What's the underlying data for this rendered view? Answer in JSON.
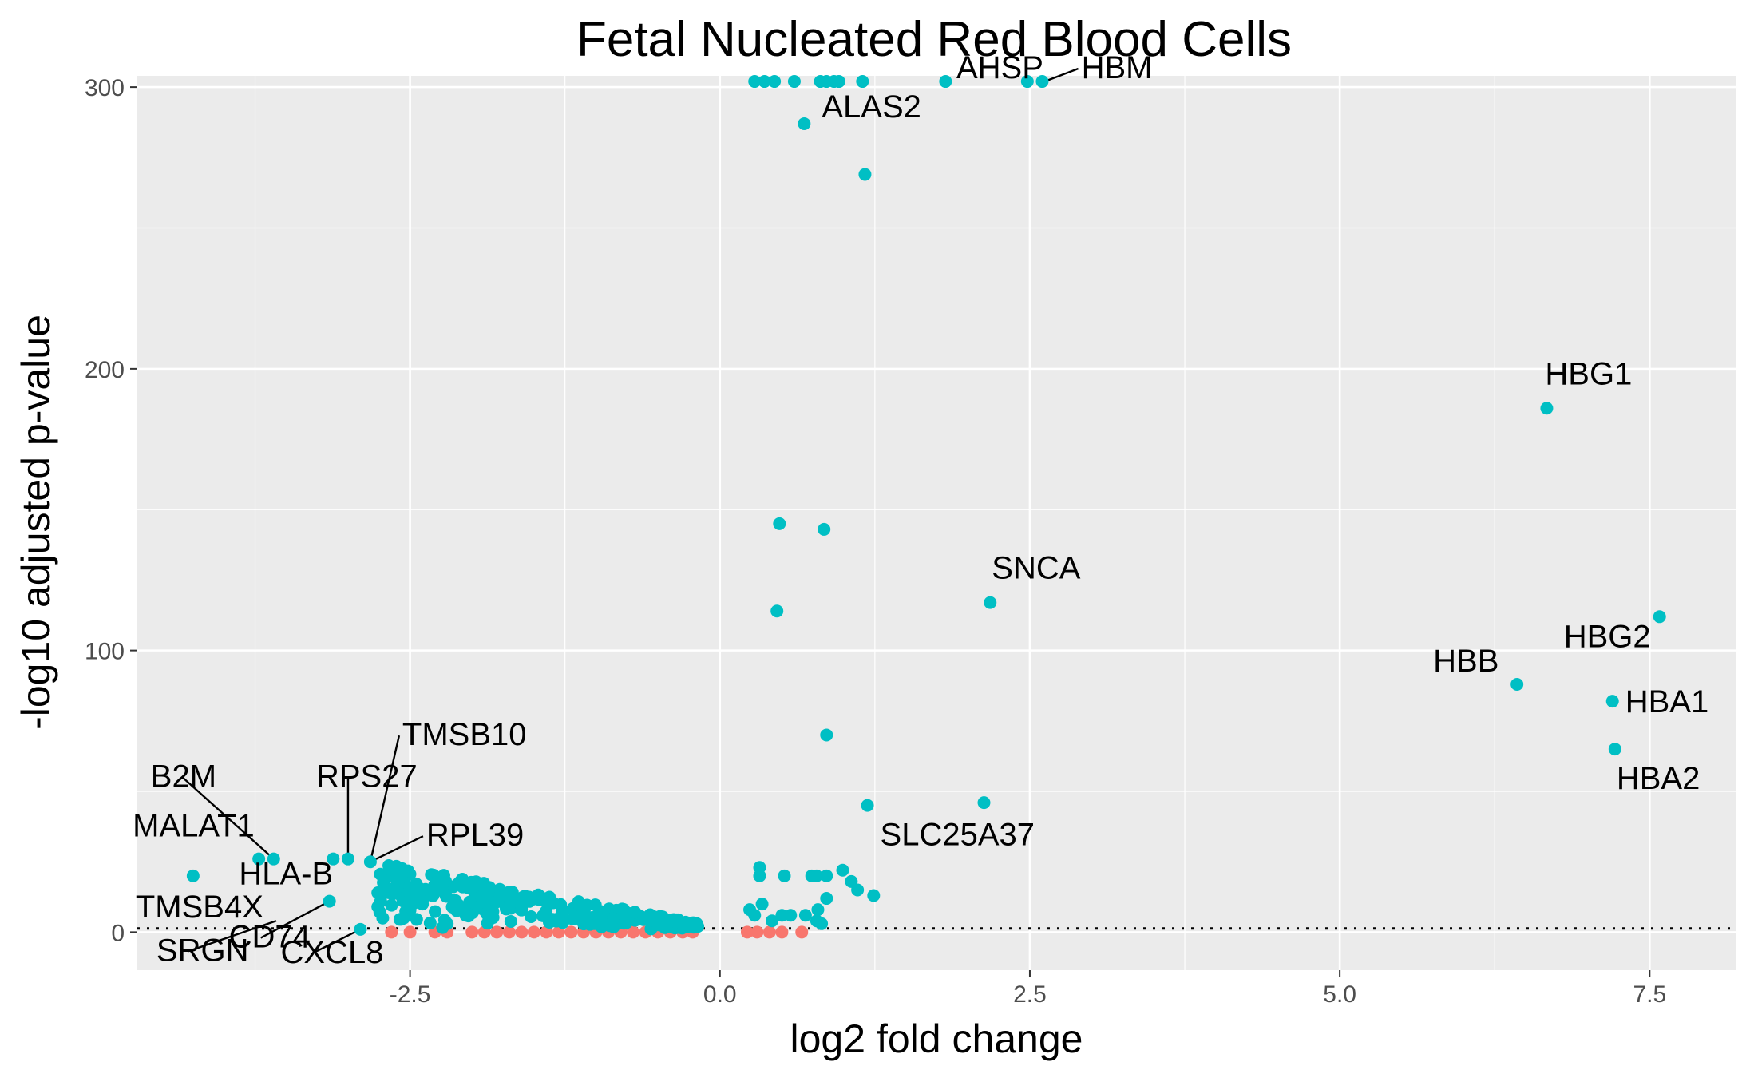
{
  "chart_data": {
    "type": "scatter",
    "title": "Fetal Nucleated Red Blood Cells",
    "xlabel": "log2 fold change",
    "ylabel": "-log10 adjusted p-value",
    "xlim": [
      -4.7,
      8.2
    ],
    "ylim": [
      -13.5,
      304
    ],
    "x_ticks": [
      "-2.5",
      "0.0",
      "2.5",
      "5.0",
      "7.5"
    ],
    "x_tick_values": [
      -2.5,
      0,
      2.5,
      5,
      7.5
    ],
    "y_ticks": [
      "0",
      "100",
      "200",
      "300"
    ],
    "y_tick_values": [
      0,
      100,
      200,
      300
    ],
    "grid": true,
    "background": "#EBEBEB",
    "reference_line": {
      "y": 1.3,
      "style": "dotted"
    },
    "colors": {
      "significant": "#00BFC4",
      "not_significant": "#F8766D"
    },
    "labeled_genes": [
      {
        "label": "ALAS2",
        "x": 0.68,
        "y": 287
      },
      {
        "label": "AHSP",
        "x": 2.5,
        "y": 302
      },
      {
        "label": "HBM",
        "x": 2.62,
        "y": 302
      },
      {
        "label": "HBG1",
        "x": 6.67,
        "y": 186
      },
      {
        "label": "SNCA",
        "x": 2.18,
        "y": 117
      },
      {
        "label": "HBG2",
        "x": 7.58,
        "y": 112
      },
      {
        "label": "HBB",
        "x": 6.43,
        "y": 88
      },
      {
        "label": "HBA1",
        "x": 7.2,
        "y": 82
      },
      {
        "label": "HBA2",
        "x": 7.22,
        "y": 65
      },
      {
        "label": "SLC25A37",
        "x": 1.19,
        "y": 45
      },
      {
        "label": "TMSB10",
        "x": -2.82,
        "y": 25
      },
      {
        "label": "RPS27",
        "x": -3.0,
        "y": 26
      },
      {
        "label": "RPL39",
        "x": -2.82,
        "y": 25
      },
      {
        "label": "B2M",
        "x": -3.6,
        "y": 26
      },
      {
        "label": "MALAT1",
        "x": -3.72,
        "y": 26
      },
      {
        "label": "HLA-B",
        "x": -3.12,
        "y": 26
      },
      {
        "label": "TMSB4X",
        "x": -4.25,
        "y": 20
      },
      {
        "label": "CD74",
        "x": -3.15,
        "y": 11
      },
      {
        "label": "SRGN",
        "x": -3.58,
        "y": 4
      },
      {
        "label": "CXCL8",
        "x": -2.9,
        "y": 1
      }
    ],
    "series": [
      {
        "points": [
          [
            0.28,
            302
          ],
          [
            0.36,
            302
          ],
          [
            0.44,
            302
          ],
          [
            0.6,
            302
          ],
          [
            0.81,
            302
          ],
          [
            0.86,
            302
          ],
          [
            0.92,
            302
          ],
          [
            0.96,
            302
          ],
          [
            1.15,
            302
          ],
          [
            1.82,
            302
          ],
          [
            2.48,
            302
          ],
          [
            2.6,
            302
          ],
          [
            0.68,
            287
          ],
          [
            1.17,
            269
          ],
          [
            6.67,
            186
          ],
          [
            0.48,
            145
          ],
          [
            0.84,
            143
          ],
          [
            2.18,
            117
          ],
          [
            0.46,
            114
          ],
          [
            7.58,
            112
          ],
          [
            6.43,
            88
          ],
          [
            7.2,
            82
          ],
          [
            0.86,
            70
          ],
          [
            7.22,
            65
          ],
          [
            1.19,
            45
          ],
          [
            2.13,
            46
          ],
          [
            0.32,
            23
          ],
          [
            0.32,
            20
          ],
          [
            0.52,
            20
          ],
          [
            0.74,
            20
          ],
          [
            0.78,
            20
          ],
          [
            0.86,
            20
          ],
          [
            0.99,
            22
          ],
          [
            1.06,
            18
          ],
          [
            1.11,
            15
          ],
          [
            1.24,
            13
          ],
          [
            0.86,
            12
          ],
          [
            0.79,
            8
          ],
          [
            0.24,
            8
          ],
          [
            0.28,
            6
          ],
          [
            0.34,
            10
          ],
          [
            0.42,
            4
          ],
          [
            0.5,
            6
          ],
          [
            0.57,
            6
          ],
          [
            0.69,
            6
          ],
          [
            0.78,
            4
          ],
          [
            0.82,
            3
          ],
          [
            -4.25,
            20
          ],
          [
            -3.72,
            26
          ],
          [
            -3.6,
            26
          ],
          [
            -3.12,
            26
          ],
          [
            -3.0,
            26
          ],
          [
            -2.82,
            25
          ],
          [
            -3.15,
            11
          ],
          [
            -2.9,
            1
          ],
          [
            -2.76,
            14
          ],
          [
            -2.76,
            9
          ],
          [
            -2.68,
            15
          ],
          [
            -2.55,
            5
          ],
          [
            -2.4,
            10
          ],
          [
            -2.2,
            3
          ],
          [
            -2.05,
            6
          ]
        ]
      },
      {
        "points": [
          [
            -2.65,
            0
          ],
          [
            -2.5,
            0
          ],
          [
            -2.3,
            0
          ],
          [
            -2.2,
            0
          ],
          [
            -2.0,
            0
          ],
          [
            -1.9,
            0
          ],
          [
            -1.8,
            0
          ],
          [
            -1.7,
            0
          ],
          [
            -1.6,
            0
          ],
          [
            -1.5,
            0
          ],
          [
            -1.4,
            0
          ],
          [
            -1.3,
            0
          ],
          [
            -1.2,
            0
          ],
          [
            -1.1,
            0
          ],
          [
            -1.0,
            0
          ],
          [
            -0.9,
            0
          ],
          [
            -0.8,
            0
          ],
          [
            -0.7,
            0
          ],
          [
            -0.6,
            0
          ],
          [
            -0.5,
            0
          ],
          [
            -0.4,
            0
          ],
          [
            -0.3,
            0
          ],
          [
            -0.22,
            0
          ],
          [
            0.22,
            0
          ],
          [
            0.3,
            0
          ],
          [
            0.4,
            0
          ],
          [
            0.5,
            0
          ],
          [
            0.66,
            0
          ]
        ]
      }
    ]
  }
}
